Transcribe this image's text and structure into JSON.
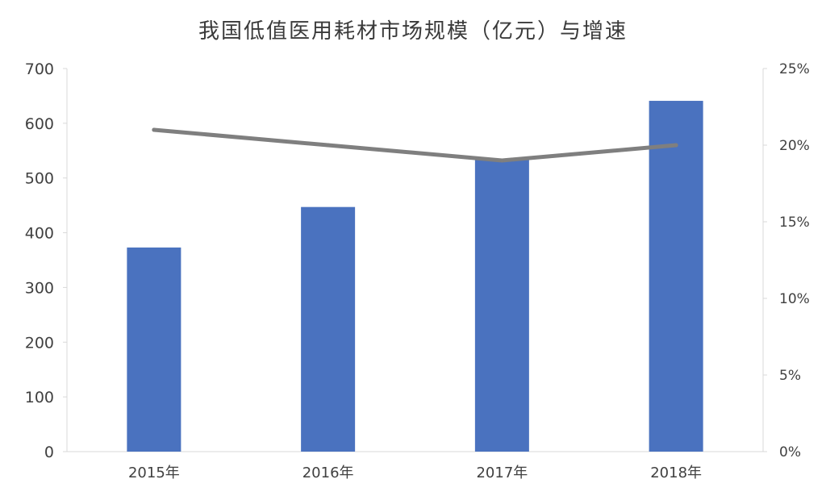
{
  "chart_data": {
    "type": "bar",
    "title": "我国低值医用耗材市场规模（亿元）与增速",
    "categories": [
      "2015年",
      "2016年",
      "2017年",
      "2018年"
    ],
    "series": [
      {
        "kind": "bar",
        "axis": "left",
        "color": "#4a72bf",
        "values": [
          373,
          447,
          535,
          641
        ]
      },
      {
        "kind": "line",
        "axis": "right",
        "color": "#7f7f7f",
        "values": [
          0.21,
          0.2,
          0.19,
          0.2
        ]
      }
    ],
    "y_left": {
      "min": 0,
      "max": 700,
      "ticks": [
        0,
        100,
        200,
        300,
        400,
        500,
        600,
        700
      ],
      "tick_labels": [
        "0",
        "100",
        "200",
        "300",
        "400",
        "500",
        "600",
        "700"
      ]
    },
    "y_right": {
      "min": 0,
      "max": 0.25,
      "ticks": [
        0,
        0.05,
        0.1,
        0.15,
        0.2,
        0.25
      ],
      "tick_labels": [
        "0%",
        "5%",
        "10%",
        "15%",
        "20%",
        "25%"
      ]
    },
    "grid": false,
    "legend": "none"
  }
}
